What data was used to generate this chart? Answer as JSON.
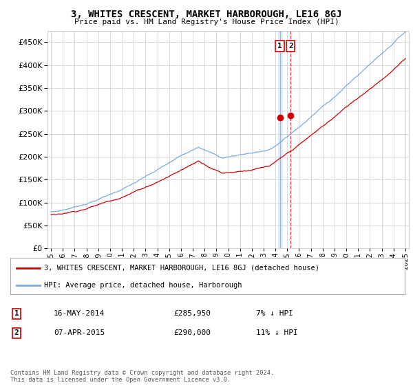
{
  "title": "3, WHITES CRESCENT, MARKET HARBOROUGH, LE16 8GJ",
  "subtitle": "Price paid vs. HM Land Registry's House Price Index (HPI)",
  "legend_line1": "3, WHITES CRESCENT, MARKET HARBOROUGH, LE16 8GJ (detached house)",
  "legend_line2": "HPI: Average price, detached house, Harborough",
  "annotation1_date": "16-MAY-2014",
  "annotation1_price": "£285,950",
  "annotation1_hpi": "7% ↓ HPI",
  "annotation2_date": "07-APR-2015",
  "annotation2_price": "£290,000",
  "annotation2_hpi": "11% ↓ HPI",
  "footer": "Contains HM Land Registry data © Crown copyright and database right 2024.\nThis data is licensed under the Open Government Licence v3.0.",
  "hpi_color": "#7aaadd",
  "price_color": "#cc0000",
  "vline1_color": "#aabbdd",
  "vline2_color": "#cc0000",
  "background_color": "#ffffff",
  "grid_color": "#cccccc",
  "ylim": [
    0,
    475000
  ],
  "yticks": [
    0,
    50000,
    100000,
    150000,
    200000,
    250000,
    300000,
    350000,
    400000,
    450000
  ],
  "year_start": 1995,
  "year_end": 2025
}
